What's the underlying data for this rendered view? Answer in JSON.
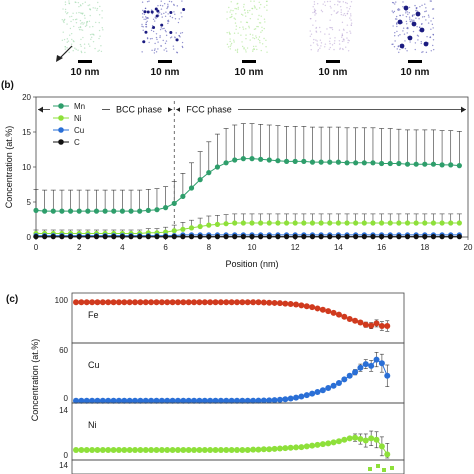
{
  "atom_maps": {
    "scale_labels": [
      "10 nm",
      "10 nm",
      "10 nm",
      "10 nm",
      "10 nm"
    ],
    "colors": [
      "#8fd19e",
      "#3a3aa8",
      "#9be07a",
      "#b39ad0",
      "#3a3aa8"
    ]
  },
  "chart_data": [
    {
      "panel_label": "(b)",
      "type": "line",
      "xlabel": "Position (nm)",
      "ylabel": "Concentration (at.%)",
      "xlim": [
        0,
        20
      ],
      "ylim": [
        0,
        20
      ],
      "xticks": [
        0,
        2,
        4,
        6,
        8,
        10,
        12,
        14,
        16,
        18,
        20
      ],
      "yticks": [
        0,
        5,
        10,
        15,
        20
      ],
      "annotations": [
        "BCC phase",
        "FCC phase"
      ],
      "boundary_x": 6.4,
      "legend_position": "top-left",
      "x": [
        0,
        0.4,
        0.8,
        1.2,
        1.6,
        2.0,
        2.4,
        2.8,
        3.2,
        3.6,
        4.0,
        4.4,
        4.8,
        5.2,
        5.6,
        6.0,
        6.4,
        6.8,
        7.2,
        7.6,
        8.0,
        8.4,
        8.8,
        9.2,
        9.6,
        10.0,
        10.4,
        10.8,
        11.2,
        11.6,
        12.0,
        12.4,
        12.8,
        13.2,
        13.6,
        14.0,
        14.4,
        14.8,
        15.2,
        15.6,
        16.0,
        16.4,
        16.8,
        17.2,
        17.6,
        18.0,
        18.4,
        18.8,
        19.2,
        19.6
      ],
      "series": [
        {
          "name": "Mn",
          "color": "#2e9e6b",
          "values": [
            3.8,
            3.7,
            3.7,
            3.7,
            3.7,
            3.7,
            3.7,
            3.7,
            3.7,
            3.7,
            3.7,
            3.7,
            3.7,
            3.8,
            3.9,
            4.2,
            4.8,
            5.8,
            7.0,
            8.2,
            9.2,
            10.0,
            10.6,
            11.0,
            11.2,
            11.2,
            11.1,
            11.0,
            10.9,
            10.8,
            10.8,
            10.8,
            10.7,
            10.7,
            10.7,
            10.7,
            10.6,
            10.6,
            10.6,
            10.6,
            10.5,
            10.5,
            10.5,
            10.4,
            10.4,
            10.4,
            10.4,
            10.3,
            10.3,
            10.2
          ],
          "errors": [
            3.0,
            3.0,
            3.0,
            3.0,
            3.0,
            3.0,
            3.0,
            3.0,
            3.0,
            3.0,
            3.0,
            3.0,
            3.0,
            3.0,
            3.0,
            3.0,
            3.1,
            3.3,
            3.6,
            4.0,
            4.4,
            4.7,
            4.9,
            5.0,
            5.0,
            5.0,
            5.0,
            5.0,
            5.0,
            5.0,
            5.0,
            5.0,
            5.0,
            5.0,
            5.0,
            5.0,
            5.0,
            5.0,
            5.0,
            5.0,
            5.0,
            5.0,
            4.9,
            4.9,
            4.9,
            4.9,
            4.9,
            4.9,
            4.9,
            4.9
          ]
        },
        {
          "name": "Ni",
          "color": "#8ee03a",
          "values": [
            0.5,
            0.5,
            0.5,
            0.5,
            0.5,
            0.5,
            0.5,
            0.5,
            0.5,
            0.5,
            0.5,
            0.5,
            0.5,
            0.6,
            0.6,
            0.7,
            0.9,
            1.1,
            1.3,
            1.5,
            1.7,
            1.8,
            1.9,
            2.0,
            2.0,
            2.0,
            2.0,
            2.0,
            2.0,
            2.0,
            2.0,
            2.0,
            2.0,
            2.0,
            2.0,
            2.0,
            2.0,
            2.0,
            2.0,
            2.0,
            2.0,
            2.0,
            2.0,
            2.0,
            2.0,
            2.0,
            2.0,
            2.0,
            2.0,
            2.0
          ],
          "errors": [
            0.5,
            0.5,
            0.5,
            0.5,
            0.5,
            0.5,
            0.5,
            0.5,
            0.5,
            0.5,
            0.5,
            0.5,
            0.5,
            0.6,
            0.6,
            0.7,
            0.8,
            1.0,
            1.1,
            1.2,
            1.3,
            1.3,
            1.3,
            1.3,
            1.3,
            1.3,
            1.3,
            1.3,
            1.3,
            1.3,
            1.3,
            1.3,
            1.3,
            1.3,
            1.3,
            1.3,
            1.3,
            1.3,
            1.3,
            1.3,
            1.3,
            1.3,
            1.3,
            1.3,
            1.3,
            1.3,
            1.3,
            1.3,
            1.3,
            1.3
          ]
        },
        {
          "name": "Cu",
          "color": "#2a6fd6",
          "values": [
            0.2,
            0.2,
            0.2,
            0.2,
            0.2,
            0.2,
            0.2,
            0.2,
            0.2,
            0.2,
            0.2,
            0.2,
            0.2,
            0.2,
            0.2,
            0.2,
            0.2,
            0.3,
            0.3,
            0.3,
            0.3,
            0.3,
            0.3,
            0.3,
            0.3,
            0.3,
            0.3,
            0.3,
            0.3,
            0.3,
            0.3,
            0.3,
            0.3,
            0.3,
            0.3,
            0.3,
            0.3,
            0.3,
            0.3,
            0.3,
            0.3,
            0.3,
            0.3,
            0.3,
            0.3,
            0.3,
            0.3,
            0.3,
            0.3,
            0.3
          ],
          "errors": []
        },
        {
          "name": "C",
          "color": "#111111",
          "values": [
            0.05,
            0.05,
            0.05,
            0.05,
            0.05,
            0.05,
            0.05,
            0.05,
            0.05,
            0.05,
            0.05,
            0.05,
            0.05,
            0.05,
            0.05,
            0.05,
            0.05,
            0.05,
            0.05,
            0.05,
            0.05,
            0.05,
            0.05,
            0.05,
            0.05,
            0.05,
            0.05,
            0.05,
            0.05,
            0.05,
            0.05,
            0.05,
            0.05,
            0.05,
            0.05,
            0.05,
            0.05,
            0.05,
            0.05,
            0.05,
            0.05,
            0.05,
            0.05,
            0.05,
            0.05,
            0.05,
            0.05,
            0.05,
            0.05,
            0.05
          ],
          "errors": []
        }
      ]
    },
    {
      "panel_label": "(c)",
      "type": "line",
      "ylabel": "Concentration (at.%)",
      "x": [
        0,
        0.4,
        0.8,
        1.2,
        1.6,
        2.0,
        2.4,
        2.8,
        3.2,
        3.6,
        4.0,
        4.4,
        4.8,
        5.2,
        5.6,
        6.0,
        6.4,
        6.8,
        7.2,
        7.6,
        8.0,
        8.4,
        8.8,
        9.2,
        9.6,
        10.0,
        10.4,
        10.8,
        11.2,
        11.6,
        12.0,
        12.4,
        12.8,
        13.2,
        13.6,
        14.0,
        14.4,
        14.8,
        15.2,
        15.6,
        16.0,
        16.4,
        16.8,
        17.2,
        17.6,
        18.0,
        18.4,
        18.8,
        19.2,
        19.6,
        20.0,
        20.4,
        20.8,
        21.2,
        21.6,
        22.0,
        22.4,
        22.8,
        23.2
      ],
      "xlim": [
        0,
        24
      ],
      "subplots": [
        {
          "name": "Fe",
          "color": "#d03a1e",
          "yticks": [
            0,
            100
          ],
          "ylim": [
            0,
            100
          ],
          "tick_labels_shown": [
            "100"
          ],
          "values": [
            88,
            88,
            88,
            88,
            88,
            88,
            88,
            88,
            88,
            88,
            88,
            88,
            88,
            88,
            88,
            88,
            88,
            88,
            88,
            88,
            88,
            88,
            88,
            88,
            88,
            88,
            88,
            88,
            88,
            88,
            88,
            88,
            88,
            88,
            88,
            87.5,
            87,
            86.5,
            86,
            85,
            84,
            83,
            81,
            79,
            77,
            74,
            71,
            68,
            64,
            60,
            55,
            50,
            46,
            42,
            37,
            35,
            40,
            34,
            34
          ],
          "errors_tail": [
            0,
            0,
            0,
            0,
            0,
            0,
            0,
            0,
            0,
            0,
            0,
            0,
            0,
            0,
            0,
            0,
            0,
            0,
            0,
            0,
            0,
            0,
            0,
            0,
            0,
            0,
            0,
            0,
            0,
            0,
            0,
            0,
            0,
            0,
            0,
            0,
            0,
            0,
            0,
            0,
            0,
            0,
            0,
            0,
            0,
            0,
            0,
            0,
            0,
            0,
            0,
            0,
            4,
            5,
            6,
            7,
            8,
            10,
            12
          ]
        },
        {
          "name": "Cu",
          "color": "#2a6fd6",
          "yticks": [
            0,
            60
          ],
          "ylim": [
            0,
            60
          ],
          "tick_labels_shown": [
            "60",
            "0"
          ],
          "values": [
            0.3,
            0.3,
            0.3,
            0.3,
            0.3,
            0.3,
            0.3,
            0.3,
            0.3,
            0.3,
            0.3,
            0.3,
            0.3,
            0.3,
            0.3,
            0.3,
            0.3,
            0.3,
            0.3,
            0.3,
            0.3,
            0.3,
            0.3,
            0.3,
            0.3,
            0.3,
            0.3,
            0.3,
            0.3,
            0.3,
            0.3,
            0.3,
            0.3,
            0.3,
            0.4,
            0.5,
            0.7,
            1.0,
            1.4,
            2.0,
            2.8,
            3.8,
            5.0,
            6.5,
            8.2,
            10.0,
            12.0,
            14.5,
            17,
            20,
            24,
            28,
            32,
            37,
            41,
            39,
            46,
            42,
            28
          ],
          "errors_tail": [
            0,
            0,
            0,
            0,
            0,
            0,
            0,
            0,
            0,
            0,
            0,
            0,
            0,
            0,
            0,
            0,
            0,
            0,
            0,
            0,
            0,
            0,
            0,
            0,
            0,
            0,
            0,
            0,
            0,
            0,
            0,
            0,
            0,
            0,
            0,
            0,
            0,
            0,
            0,
            0,
            0,
            0,
            0,
            0,
            0,
            0,
            0,
            0,
            0,
            0,
            0,
            0,
            3,
            4,
            5,
            6,
            8,
            10,
            12
          ]
        },
        {
          "name": "Ni",
          "color": "#8ee03a",
          "yticks": [
            0,
            14
          ],
          "ylim": [
            0,
            14
          ],
          "tick_labels_shown": [
            "14",
            "0"
          ],
          "values": [
            2.2,
            2.2,
            2.2,
            2.2,
            2.2,
            2.2,
            2.2,
            2.2,
            2.2,
            2.2,
            2.2,
            2.2,
            2.2,
            2.2,
            2.2,
            2.2,
            2.2,
            2.2,
            2.2,
            2.2,
            2.2,
            2.2,
            2.2,
            2.2,
            2.2,
            2.2,
            2.2,
            2.2,
            2.2,
            2.2,
            2.2,
            2.2,
            2.2,
            2.3,
            2.3,
            2.4,
            2.4,
            2.5,
            2.6,
            2.7,
            2.8,
            2.9,
            3.0,
            3.2,
            3.4,
            3.6,
            3.8,
            4.0,
            4.3,
            4.6,
            5.0,
            5.4,
            5.6,
            5.2,
            4.8,
            5.4,
            5.0,
            3.2,
            1.0
          ],
          "errors_tail": [
            0,
            0,
            0,
            0,
            0,
            0,
            0,
            0,
            0,
            0,
            0,
            0,
            0,
            0,
            0,
            0,
            0,
            0,
            0,
            0,
            0,
            0,
            0,
            0,
            0,
            0,
            0,
            0,
            0,
            0,
            0,
            0,
            0,
            0,
            0,
            0,
            0,
            0,
            0,
            0,
            0,
            0,
            0,
            0,
            0,
            0,
            0,
            0,
            0,
            0,
            0,
            0,
            1.0,
            1.4,
            1.8,
            2.0,
            2.2,
            2.6,
            3.0
          ]
        },
        {
          "name": "",
          "color": "#8ee03a",
          "yticks": [
            14
          ],
          "ylim": [
            0,
            14
          ],
          "tick_labels_shown": [
            "14"
          ],
          "values": [],
          "errors_tail": []
        }
      ]
    }
  ]
}
